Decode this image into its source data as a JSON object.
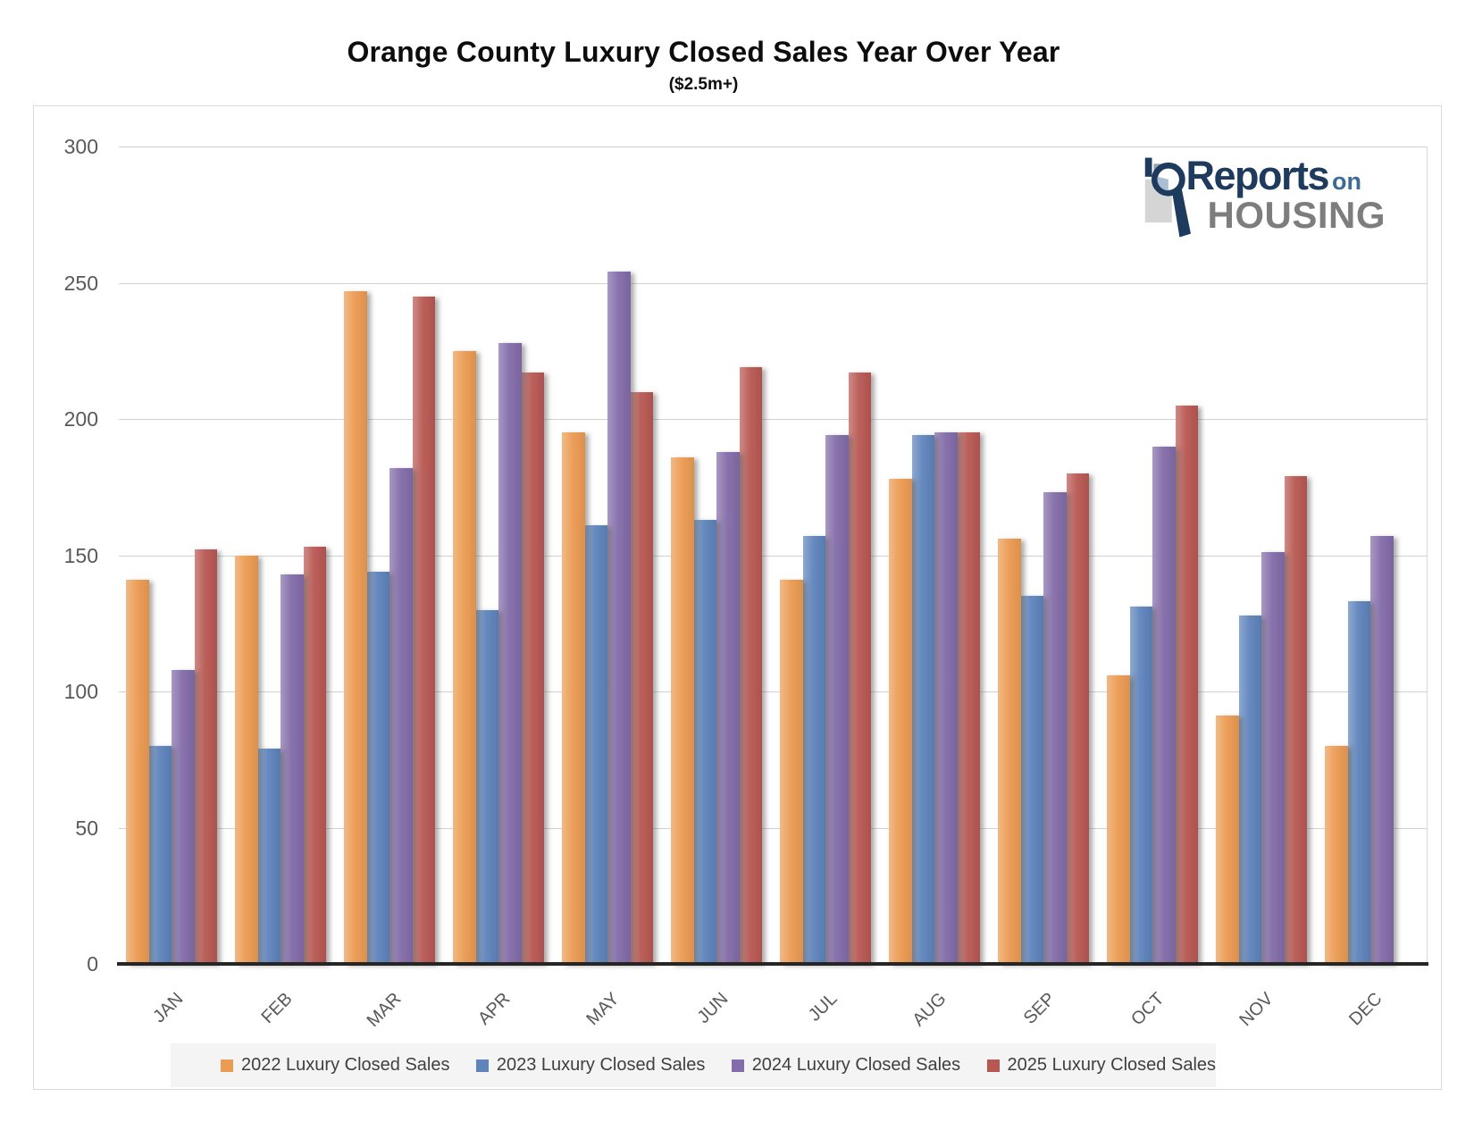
{
  "page": {
    "title": "Orange County Luxury Closed Sales Year Over Year",
    "subtitle": "($2.5m+)"
  },
  "logo": {
    "word1": "Reports",
    "word2": "on",
    "word3": "HOUSING",
    "icon": "magnifier-bar-chart-icon",
    "color_navy": "#1e3a5c",
    "color_on": "#3e6a96",
    "color_gray": "#7d7d7d"
  },
  "chart_data": {
    "type": "bar",
    "title": "Orange County Luxury Closed Sales Year Over Year",
    "subtitle": "($2.5m+)",
    "categories": [
      "JAN",
      "FEB",
      "MAR",
      "APR",
      "MAY",
      "JUN",
      "JUL",
      "AUG",
      "SEP",
      "OCT",
      "NOV",
      "DEC"
    ],
    "series": [
      {
        "name": "2022 Luxury Closed Sales",
        "color": "#ec9b52",
        "values": [
          141,
          150,
          247,
          225,
          195,
          186,
          141,
          178,
          156,
          106,
          91,
          80
        ]
      },
      {
        "name": "2023 Luxury Closed Sales",
        "color": "#5e84bc",
        "values": [
          80,
          79,
          144,
          130,
          161,
          163,
          157,
          194,
          135,
          131,
          128,
          133
        ]
      },
      {
        "name": "2024 Luxury Closed Sales",
        "color": "#836ca9",
        "values": [
          108,
          143,
          182,
          228,
          254,
          188,
          194,
          195,
          173,
          190,
          151,
          157
        ]
      },
      {
        "name": "2025 Luxury Closed Sales",
        "color": "#b95853",
        "values": [
          152,
          153,
          245,
          217,
          210,
          219,
          217,
          195,
          180,
          205,
          179,
          null
        ]
      }
    ],
    "ylim": [
      0,
      300
    ],
    "y_ticks": [
      0,
      50,
      100,
      150,
      200,
      250,
      300
    ],
    "grid": true,
    "legend_position": "bottom",
    "xlabel": "",
    "ylabel": ""
  }
}
